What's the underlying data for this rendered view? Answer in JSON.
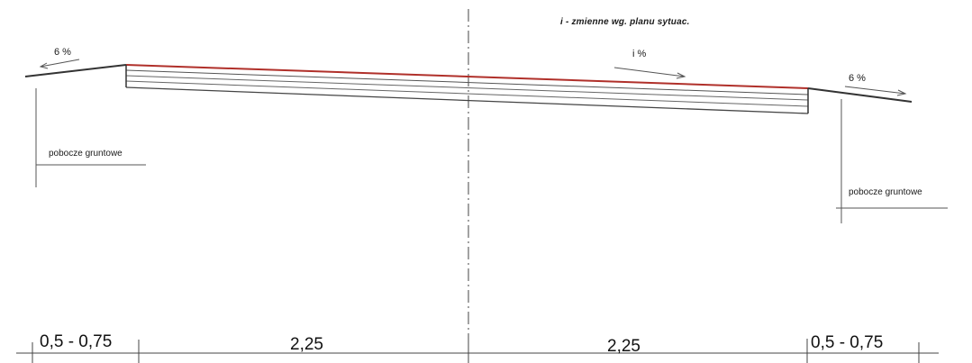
{
  "note": {
    "title": "i - zmienne wg. planu sytuac."
  },
  "slopes": {
    "left": "6 %",
    "middle": "i %",
    "right": "6 %"
  },
  "shoulders": {
    "left": "pobocze gruntowe",
    "right": "pobocze gruntowe"
  },
  "dimensions": {
    "left_shoulder": "0,5 - 0,75",
    "left_lane": "2,25",
    "right_lane": "2,25",
    "right_shoulder": "0,5 - 0,75"
  },
  "colors": {
    "line": "#333333",
    "surface": "#b0302a",
    "axis": "#444444"
  }
}
